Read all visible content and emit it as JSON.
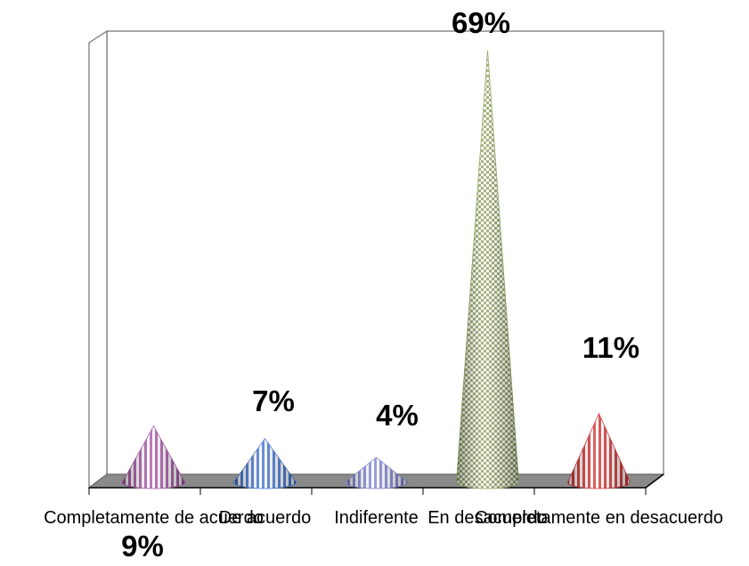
{
  "chart_data": {
    "type": "bar",
    "shape": "cone",
    "categories": [
      "Completamente de acuerdo",
      "De acuerdo",
      "Indiferente",
      "En desacuerdo",
      "Completamente en desacuerdo"
    ],
    "values": [
      9,
      7,
      4,
      69,
      11
    ],
    "value_labels": [
      "9%",
      "7%",
      "4%",
      "69%",
      "11%"
    ],
    "unit": "%",
    "ylim": [
      0,
      70
    ],
    "grid": false,
    "legend": "none",
    "colors": [
      "#a54fa5",
      "#3a6fd4",
      "#7b82d6",
      "#8fa35a",
      "#d42b2b"
    ]
  }
}
